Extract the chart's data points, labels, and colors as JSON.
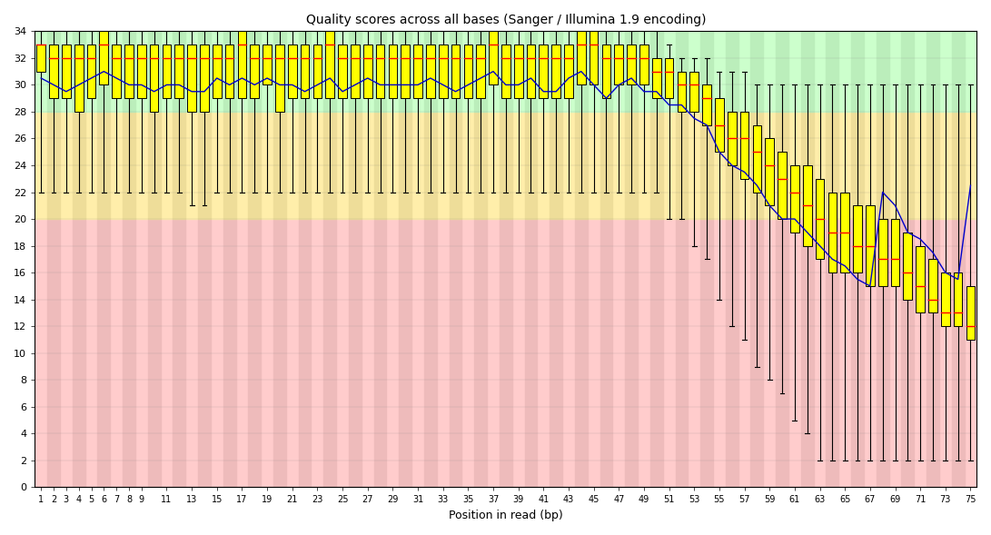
{
  "title": "Quality scores across all bases (Sanger / Illumina 1.9 encoding)",
  "xlabel": "Position in read (bp)",
  "ylabel": "",
  "ylim": [
    0,
    34
  ],
  "yticks": [
    0,
    2,
    4,
    6,
    8,
    10,
    12,
    14,
    16,
    18,
    20,
    22,
    24,
    26,
    28,
    30,
    32,
    34
  ],
  "xtick_labels": [
    "1",
    "2",
    "3",
    "4",
    "5",
    "6",
    "7",
    "8",
    "9",
    "11",
    "13",
    "15",
    "17",
    "19",
    "21",
    "23",
    "25",
    "27",
    "29",
    "31",
    "33",
    "35",
    "37",
    "39",
    "41",
    "43",
    "45",
    "47",
    "49",
    "51",
    "53",
    "55",
    "57",
    "59",
    "61",
    "63",
    "65",
    "67",
    "69",
    "71",
    "73",
    "75"
  ],
  "xtick_positions": [
    1,
    2,
    3,
    4,
    5,
    6,
    7,
    8,
    9,
    11,
    13,
    15,
    17,
    19,
    21,
    23,
    25,
    27,
    29,
    31,
    33,
    35,
    37,
    39,
    41,
    43,
    45,
    47,
    49,
    51,
    53,
    55,
    57,
    59,
    61,
    63,
    65,
    67,
    69,
    71,
    73,
    75
  ],
  "background_green_range": [
    28,
    34
  ],
  "background_yellow_range": [
    20,
    28
  ],
  "background_red_range": [
    0,
    20
  ],
  "color_green": "#CCFFCC",
  "color_yellow": "#FFEEAA",
  "color_red": "#FFCCCC",
  "stripe_green": "#BBEEBB",
  "stripe_yellow": "#EEDD99",
  "stripe_red": "#EEBBBB",
  "box_color": "#FFFF00",
  "box_edge_color": "#000000",
  "median_color": "#FF0000",
  "mean_color": "#0000CC",
  "whisker_color": "#000000",
  "positions": [
    1,
    2,
    3,
    4,
    5,
    6,
    7,
    8,
    9,
    10,
    11,
    12,
    13,
    14,
    15,
    16,
    17,
    18,
    19,
    20,
    21,
    22,
    23,
    24,
    25,
    26,
    27,
    28,
    29,
    30,
    31,
    32,
    33,
    34,
    35,
    36,
    37,
    38,
    39,
    40,
    41,
    42,
    43,
    44,
    45,
    46,
    47,
    48,
    49,
    50,
    51,
    52,
    53,
    54,
    55,
    56,
    57,
    58,
    59,
    60,
    61,
    62,
    63,
    64,
    65,
    66,
    67,
    68,
    69,
    70,
    71,
    72,
    73,
    74,
    75
  ],
  "q_low": [
    22,
    22,
    22,
    22,
    22,
    22,
    22,
    22,
    22,
    22,
    22,
    22,
    21,
    21,
    22,
    22,
    22,
    22,
    22,
    22,
    22,
    22,
    22,
    22,
    22,
    22,
    22,
    22,
    22,
    22,
    22,
    22,
    22,
    22,
    22,
    22,
    22,
    22,
    22,
    22,
    22,
    22,
    22,
    22,
    22,
    22,
    22,
    22,
    22,
    22,
    20,
    20,
    18,
    17,
    14,
    12,
    11,
    9,
    8,
    7,
    5,
    4,
    2,
    2,
    2,
    2,
    2,
    2,
    2,
    2,
    2,
    2,
    2,
    2,
    2
  ],
  "q25": [
    31,
    29,
    29,
    28,
    29,
    30,
    29,
    29,
    29,
    28,
    29,
    29,
    28,
    28,
    29,
    29,
    29,
    29,
    30,
    28,
    29,
    29,
    29,
    29,
    29,
    29,
    29,
    29,
    29,
    29,
    29,
    29,
    29,
    29,
    29,
    29,
    30,
    29,
    29,
    29,
    29,
    29,
    29,
    30,
    30,
    29,
    30,
    30,
    30,
    29,
    29,
    28,
    28,
    27,
    25,
    24,
    23,
    22,
    21,
    20,
    19,
    18,
    17,
    16,
    16,
    16,
    15,
    15,
    15,
    14,
    13,
    13,
    12,
    12,
    11
  ],
  "median": [
    33,
    32,
    32,
    32,
    32,
    33,
    32,
    32,
    32,
    32,
    32,
    32,
    32,
    32,
    32,
    32,
    33,
    32,
    32,
    32,
    32,
    32,
    32,
    33,
    32,
    32,
    32,
    32,
    32,
    32,
    32,
    32,
    32,
    32,
    32,
    32,
    33,
    32,
    32,
    32,
    32,
    32,
    32,
    33,
    33,
    32,
    32,
    32,
    32,
    31,
    31,
    30,
    30,
    29,
    27,
    26,
    26,
    25,
    24,
    23,
    22,
    21,
    20,
    19,
    19,
    18,
    18,
    17,
    17,
    16,
    15,
    14,
    13,
    13,
    12
  ],
  "q75": [
    33,
    33,
    33,
    33,
    33,
    34,
    33,
    33,
    33,
    33,
    33,
    33,
    33,
    33,
    33,
    33,
    34,
    33,
    33,
    33,
    33,
    33,
    33,
    34,
    33,
    33,
    33,
    33,
    33,
    33,
    33,
    33,
    33,
    33,
    33,
    33,
    34,
    33,
    33,
    33,
    33,
    33,
    33,
    34,
    34,
    33,
    33,
    33,
    33,
    32,
    32,
    31,
    31,
    30,
    29,
    28,
    28,
    27,
    26,
    25,
    24,
    24,
    23,
    22,
    22,
    21,
    21,
    20,
    20,
    19,
    18,
    17,
    16,
    16,
    15
  ],
  "q_high": [
    34,
    34,
    34,
    34,
    34,
    34,
    34,
    34,
    34,
    34,
    34,
    34,
    34,
    34,
    34,
    34,
    34,
    34,
    34,
    34,
    34,
    34,
    34,
    34,
    34,
    34,
    34,
    34,
    34,
    34,
    34,
    34,
    34,
    34,
    34,
    34,
    34,
    34,
    34,
    34,
    34,
    34,
    34,
    34,
    34,
    34,
    34,
    34,
    34,
    34,
    33,
    32,
    32,
    32,
    31,
    31,
    31,
    30,
    30,
    30,
    30,
    30,
    30,
    30,
    30,
    30,
    30,
    30,
    30,
    30,
    30,
    30,
    30,
    30,
    30
  ],
  "mean": [
    30.5,
    30.0,
    29.5,
    30.0,
    30.5,
    31.0,
    30.5,
    30.0,
    30.0,
    29.5,
    30.0,
    30.0,
    29.5,
    29.5,
    30.5,
    30.0,
    30.5,
    30.0,
    30.5,
    30.0,
    30.0,
    29.5,
    30.0,
    30.5,
    29.5,
    30.0,
    30.5,
    30.0,
    30.0,
    30.0,
    30.0,
    30.5,
    30.0,
    29.5,
    30.0,
    30.5,
    31.0,
    30.0,
    30.0,
    30.5,
    29.5,
    29.5,
    30.5,
    31.0,
    30.0,
    29.0,
    30.0,
    30.5,
    29.5,
    29.5,
    28.5,
    28.5,
    27.5,
    27.0,
    25.0,
    24.0,
    23.5,
    22.5,
    21.0,
    20.0,
    20.0,
    19.0,
    18.0,
    17.0,
    16.5,
    15.5,
    15.0,
    22.0,
    21.0,
    19.0,
    18.5,
    17.5,
    16.0,
    15.5,
    22.5
  ]
}
